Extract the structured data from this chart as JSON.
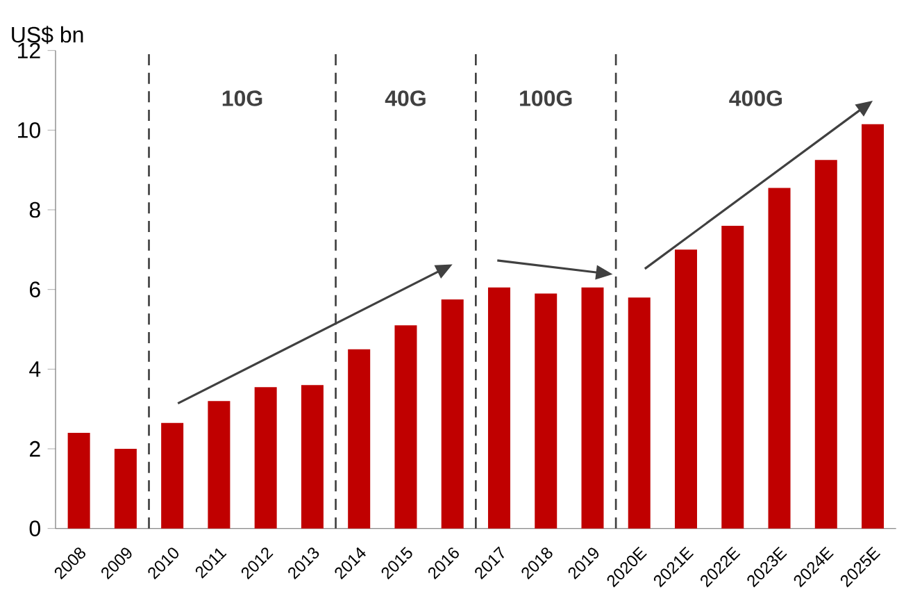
{
  "chart_data": {
    "type": "bar",
    "ylabel": "US$ bn",
    "categories": [
      "2008",
      "2009",
      "2010",
      "2011",
      "2012",
      "2013",
      "2014",
      "2015",
      "2016",
      "2017",
      "2018",
      "2019",
      "2020E",
      "2021E",
      "2022E",
      "2023E",
      "2024E",
      "2025E"
    ],
    "values": [
      2.4,
      2.0,
      2.65,
      3.2,
      3.55,
      3.6,
      4.5,
      5.1,
      5.75,
      6.05,
      5.9,
      6.05,
      5.8,
      7.0,
      7.6,
      8.55,
      9.25,
      10.15
    ],
    "color": "#c00000",
    "ylim": [
      0,
      12
    ],
    "yticks": [
      0,
      2,
      4,
      6,
      8,
      10,
      12
    ],
    "grid": false,
    "annotations": [
      "10G",
      "40G",
      "100G",
      "400G"
    ]
  }
}
